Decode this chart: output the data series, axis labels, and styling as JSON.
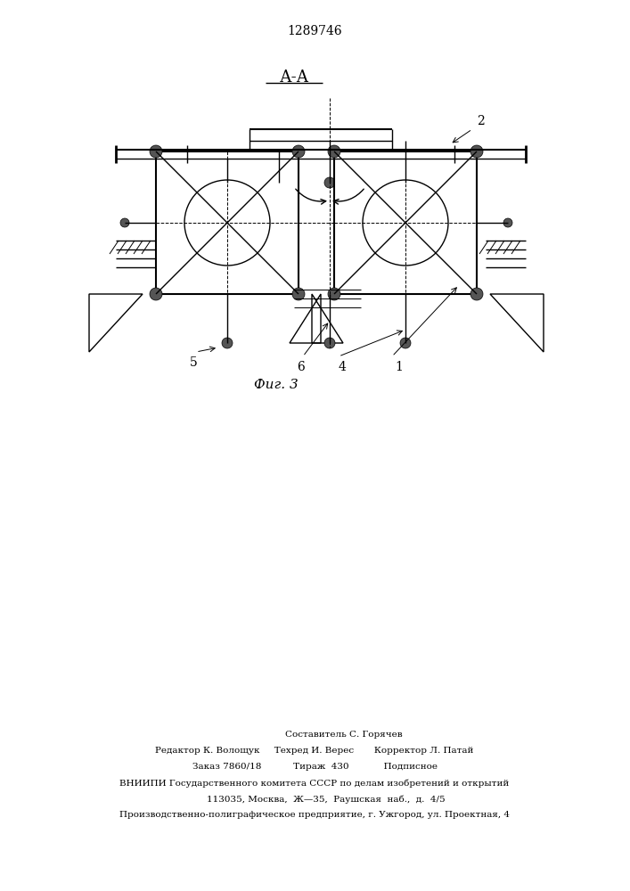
{
  "patent_number": "1289746",
  "section_label": "А-А",
  "figure_label": "Фиг. 3",
  "background_color": "#ffffff",
  "line_color": "#000000",
  "footer_line1": "                    Составитель С. Горячев",
  "footer_line2": "Редактор К. Волощук     Техред И. Верес       Корректор Л. Патай",
  "footer_line3": "Заказ 7860/18           Тираж  430            Подписное",
  "footer_line4": "ВНИИПИ Государственного комитета СССР по делам изобретений и открытий",
  "footer_line5": "        113035, Москва,  Ж—35,  Раушская  наб.,  д.  4/5",
  "footer_line6": "Производственно-полиграфическое предприятие, г. Ужгород, ул. Проектная, 4"
}
